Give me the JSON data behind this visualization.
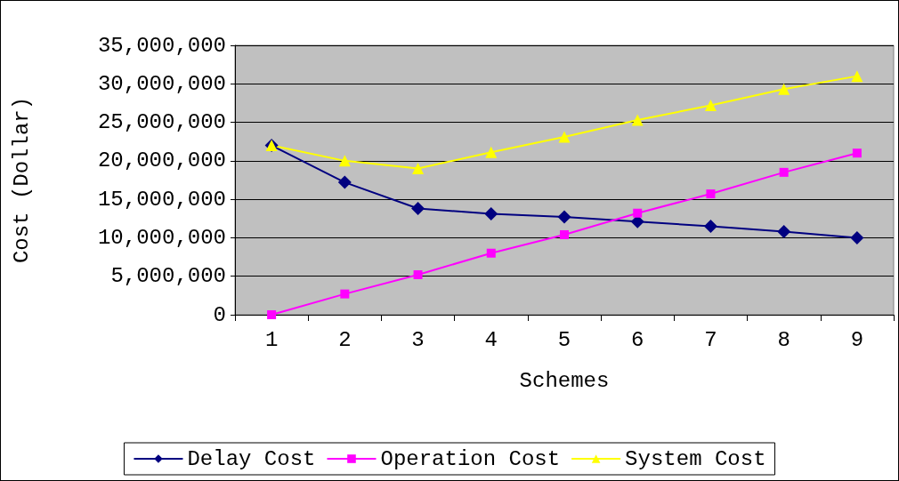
{
  "chart_data": {
    "type": "line",
    "xlabel": "Schemes",
    "ylabel": "Cost (Dollar)",
    "categories": [
      "1",
      "2",
      "3",
      "4",
      "5",
      "6",
      "7",
      "8",
      "9"
    ],
    "series": [
      {
        "name": "Delay Cost",
        "color": "#000080",
        "marker": "diamond",
        "values": [
          22000000,
          17200000,
          13800000,
          13100000,
          12700000,
          12100000,
          11500000,
          10800000,
          10000000
        ]
      },
      {
        "name": "Operation Cost",
        "color": "#ff00ff",
        "marker": "square",
        "values": [
          0,
          2700000,
          5200000,
          8000000,
          10400000,
          13200000,
          15700000,
          18500000,
          21000000
        ]
      },
      {
        "name": "System Cost",
        "color": "#ffff00",
        "marker": "triangle",
        "values": [
          22000000,
          20000000,
          19000000,
          21100000,
          23100000,
          25300000,
          27200000,
          29300000,
          31000000
        ]
      }
    ],
    "ylim": [
      0,
      35000000
    ],
    "yticks": [
      {
        "value": 0,
        "label": "0"
      },
      {
        "value": 5000000,
        "label": "5,000,000"
      },
      {
        "value": 10000000,
        "label": "10,000,000"
      },
      {
        "value": 15000000,
        "label": "15,000,000"
      },
      {
        "value": 20000000,
        "label": "20,000,000"
      },
      {
        "value": 25000000,
        "label": "25,000,000"
      },
      {
        "value": 30000000,
        "label": "30,000,000"
      },
      {
        "value": 35000000,
        "label": "35,000,000"
      }
    ],
    "grid": "y",
    "legend": "bottom",
    "line_style": "solid"
  }
}
